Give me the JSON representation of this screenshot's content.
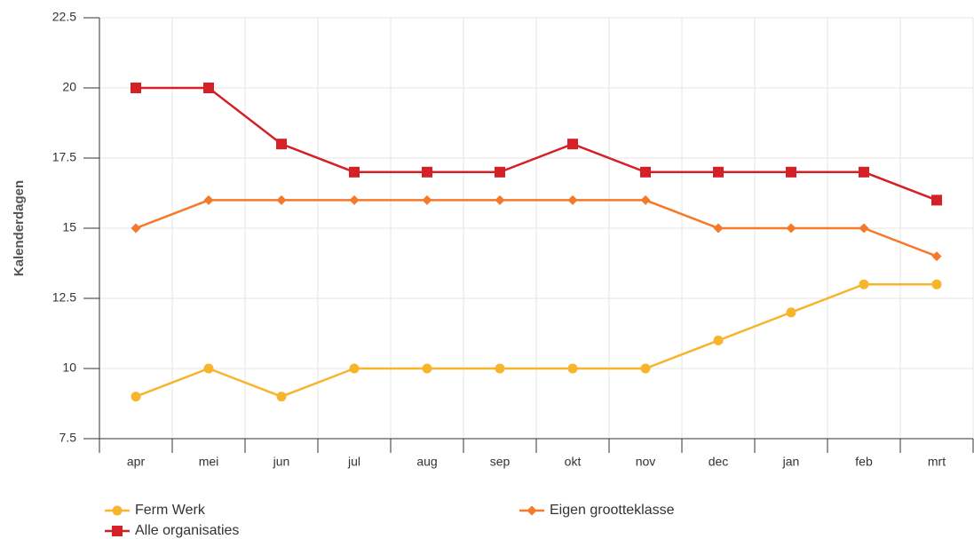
{
  "chart_data": {
    "type": "line",
    "ylabel": "Kalenderdagen",
    "categories": [
      "apr",
      "mei",
      "jun",
      "jul",
      "aug",
      "sep",
      "okt",
      "nov",
      "dec",
      "jan",
      "feb",
      "mrt"
    ],
    "series": [
      {
        "name": "Ferm Werk",
        "color": "#f7b52c",
        "marker": "circle",
        "values": [
          9,
          10,
          9,
          10,
          10,
          10,
          10,
          10,
          11,
          12,
          13,
          13
        ]
      },
      {
        "name": "Eigen grootteklasse",
        "color": "#f47a2a",
        "marker": "diamond",
        "values": [
          15,
          16,
          16,
          16,
          16,
          16,
          16,
          16,
          15,
          15,
          15,
          14
        ]
      },
      {
        "name": "Alle organisaties",
        "color": "#d42027",
        "marker": "square",
        "values": [
          20,
          20,
          18,
          17,
          17,
          17,
          18,
          17,
          17,
          17,
          17,
          16
        ]
      }
    ],
    "ylim": [
      7.5,
      22.5
    ],
    "yticks": [
      7.5,
      10,
      12.5,
      15,
      17.5,
      20,
      22.5
    ],
    "grid": true
  }
}
